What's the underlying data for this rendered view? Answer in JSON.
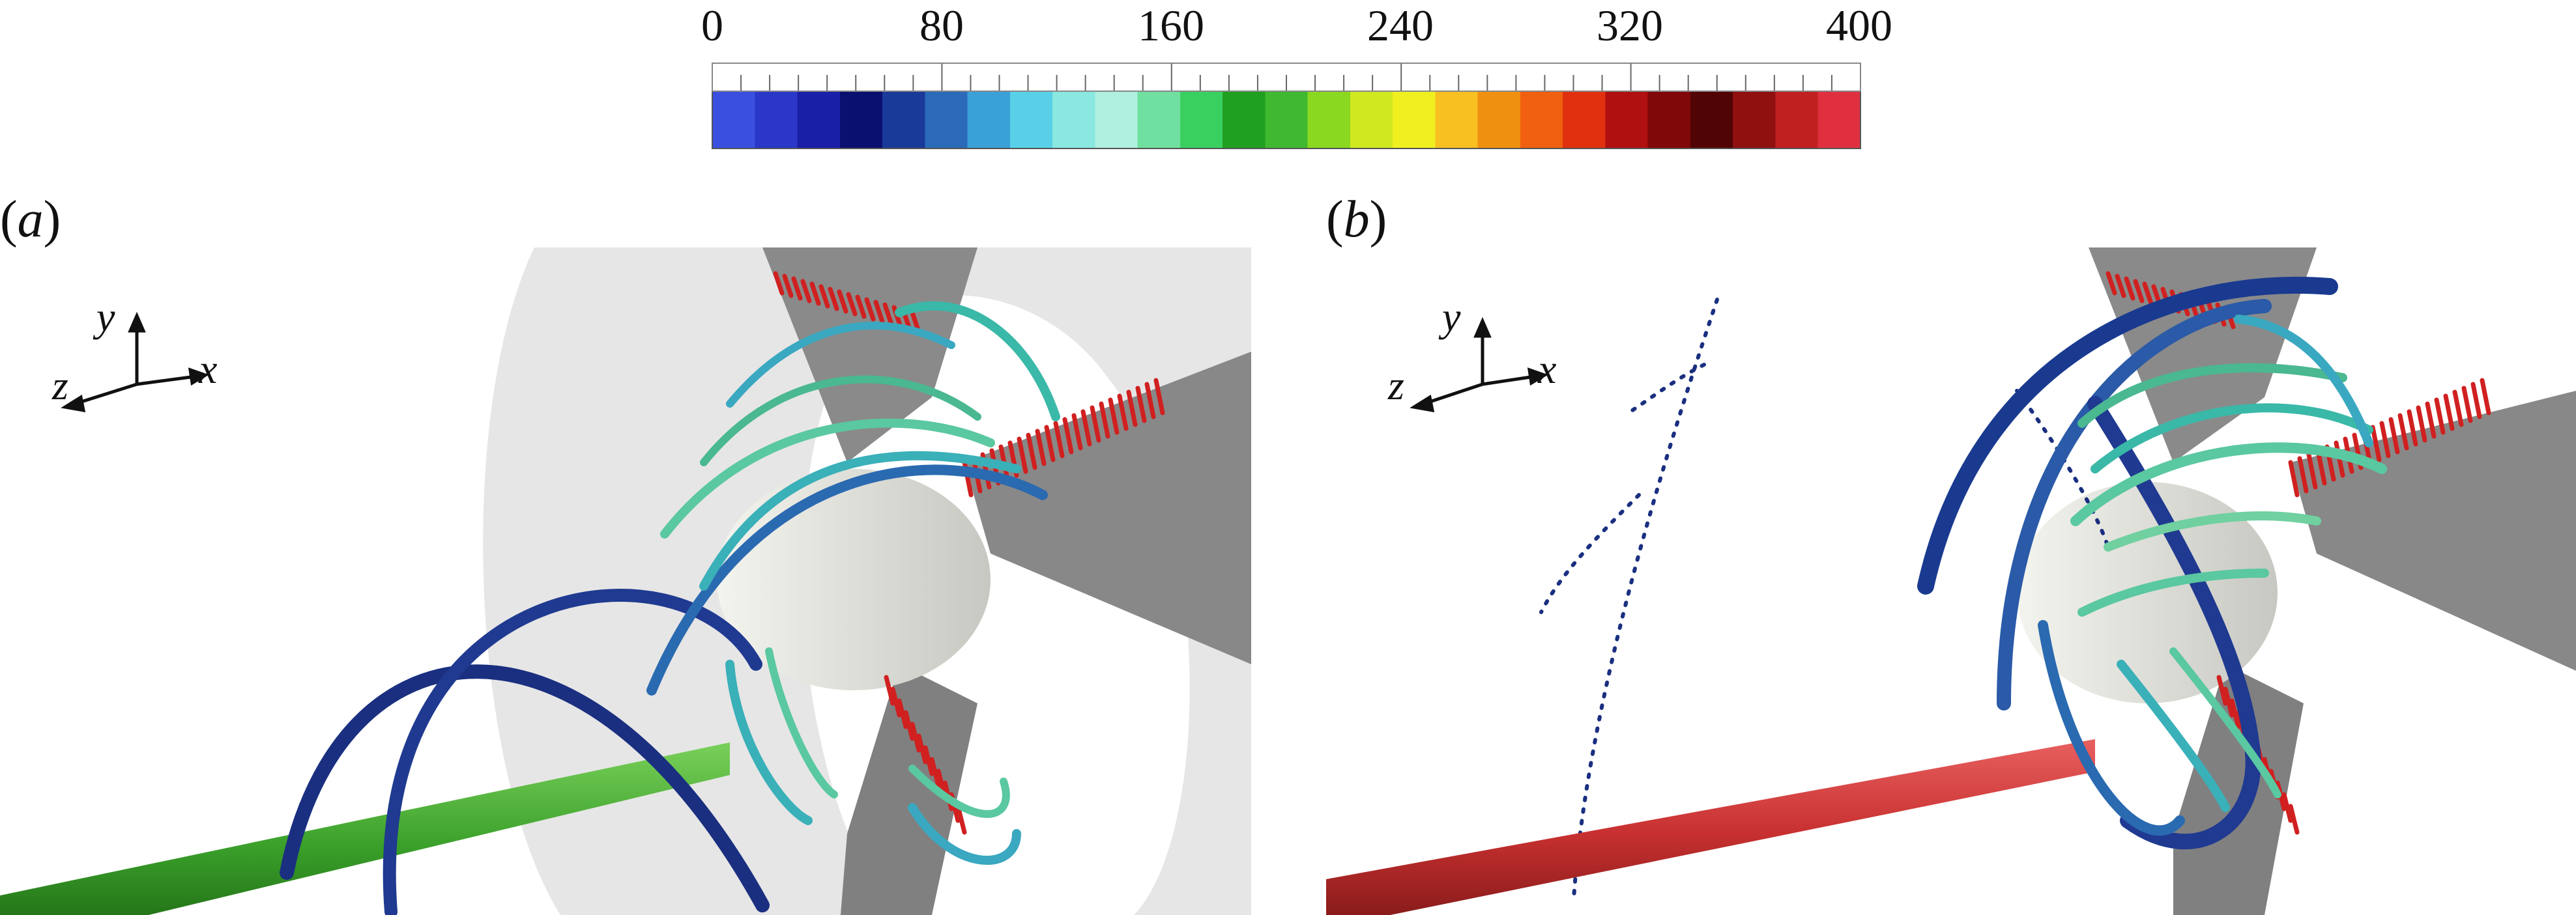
{
  "colorbar": {
    "ticks": [
      "0",
      "80",
      "160",
      "240",
      "320",
      "400"
    ],
    "min": 0,
    "max": 400,
    "colors": [
      "#3a4fe0",
      "#2a37c8",
      "#1a1fa8",
      "#0a1070",
      "#1a3a9a",
      "#2a6ab8",
      "#3aa0d8",
      "#5ad0e8",
      "#8ae8e0",
      "#b0f0e0",
      "#70e0a0",
      "#3ad060",
      "#20a020",
      "#40b830",
      "#8ad820",
      "#d0e820",
      "#f0f020",
      "#f8c020",
      "#f09010",
      "#f06010",
      "#e03010",
      "#b01010",
      "#800808",
      "#500404",
      "#901010",
      "#c02020",
      "#e03040"
    ]
  },
  "panels": [
    {
      "id": "a",
      "label_open": "(",
      "label_letter": "a",
      "label_close": ")",
      "axis_x": "x",
      "axis_y": "y",
      "axis_z": "z",
      "rod_color": "#3aa02a"
    },
    {
      "id": "b",
      "label_open": "(",
      "label_letter": "b",
      "label_close": ")",
      "axis_x": "x",
      "axis_y": "y",
      "axis_z": "z",
      "rod_color": "#d03030"
    }
  ]
}
